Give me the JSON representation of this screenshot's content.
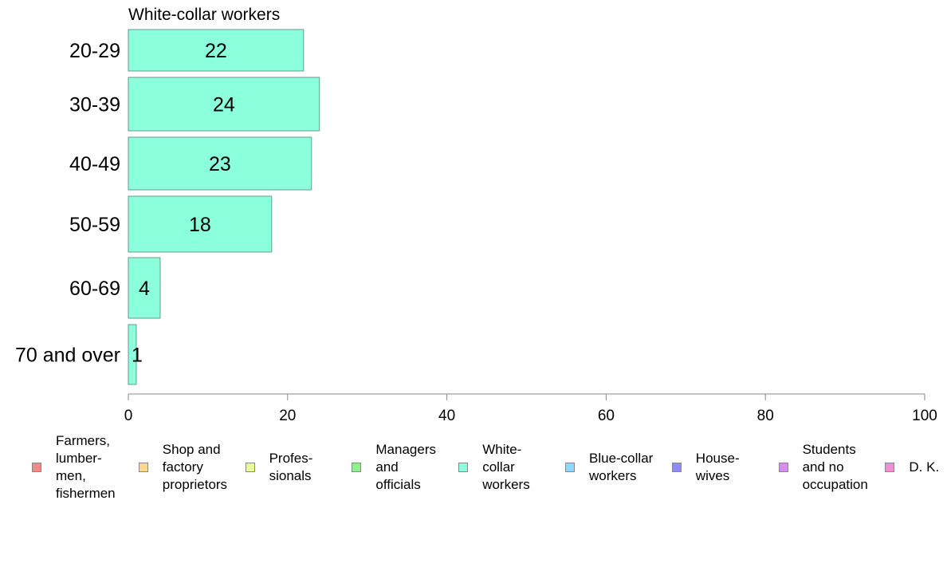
{
  "chart_data": {
    "type": "bar",
    "orientation": "horizontal",
    "panel_title": "White-collar workers",
    "categories": [
      "20-29",
      "30-39",
      "40-49",
      "50-59",
      "60-69",
      "70 and over"
    ],
    "values": [
      22,
      24,
      23,
      18,
      4,
      1
    ],
    "x_ticks": [
      "0",
      "20",
      "40",
      "60",
      "80",
      "100"
    ],
    "xlim": [
      0,
      100
    ],
    "grid": false,
    "bar_color": "#8cffdd",
    "bar_border": "#6a9a8c",
    "axis_color": "#888888",
    "legend": {
      "placement": "bottom",
      "items": [
        {
          "label": "Farmers, lumber- men, fishermen",
          "color": "#f28a8a"
        },
        {
          "label": "Shop and factory proprietors",
          "color": "#ffd98a"
        },
        {
          "label": "Profes- sionals",
          "color": "#e6ff8a"
        },
        {
          "label": "Managers and officials",
          "color": "#8cf28a"
        },
        {
          "label": "White- collar workers",
          "color": "#8cffdd"
        },
        {
          "label": "Blue-collar workers",
          "color": "#8cd9ff"
        },
        {
          "label": "House- wives",
          "color": "#8c8cf2"
        },
        {
          "label": "Students and no occupation",
          "color": "#d98cf2"
        },
        {
          "label": "D. K.",
          "color": "#f28cd9"
        }
      ]
    }
  }
}
